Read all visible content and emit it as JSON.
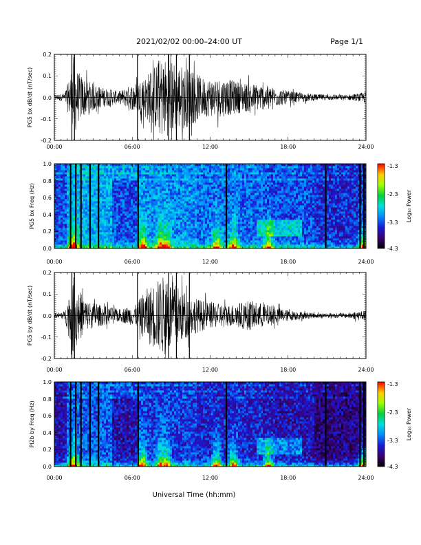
{
  "header": {
    "title": "2021/02/02  00:00–24:00 UT",
    "page": "Page 1/1"
  },
  "colors": {
    "trace": "#000000",
    "axis": "#000000",
    "background": "#ffffff"
  },
  "chart_data": [
    {
      "type": "line",
      "ylabel": "PG5 bx dB/dt (nT/sec)",
      "xticks": [
        "00:00",
        "06:00",
        "12:00",
        "18:00",
        "24:00"
      ],
      "ylim": [
        -0.2,
        0.2
      ],
      "yticks": [
        "0.2",
        "0.1",
        "0.0",
        "-0.1",
        "-0.2"
      ],
      "envelope": [
        {
          "hour": 0,
          "amp": 0.012
        },
        {
          "hour": 0.8,
          "amp": 0.02
        },
        {
          "hour": 1.2,
          "amp": 0.1
        },
        {
          "hour": 1.5,
          "amp": 0.2
        },
        {
          "hour": 1.8,
          "amp": 0.12
        },
        {
          "hour": 2.5,
          "amp": 0.08
        },
        {
          "hour": 3.5,
          "amp": 0.05
        },
        {
          "hour": 5.0,
          "amp": 0.03
        },
        {
          "hour": 6.3,
          "amp": 0.07
        },
        {
          "hour": 7.0,
          "amp": 0.1
        },
        {
          "hour": 8.3,
          "amp": 0.19
        },
        {
          "hour": 9.5,
          "amp": 0.16
        },
        {
          "hour": 10.5,
          "amp": 0.13
        },
        {
          "hour": 11.5,
          "amp": 0.09
        },
        {
          "hour": 13.0,
          "amp": 0.09
        },
        {
          "hour": 14.5,
          "amp": 0.07
        },
        {
          "hour": 16.0,
          "amp": 0.06
        },
        {
          "hour": 18.0,
          "amp": 0.03
        },
        {
          "hour": 20.0,
          "amp": 0.015
        },
        {
          "hour": 22.5,
          "amp": 0.012
        },
        {
          "hour": 23.6,
          "amp": 0.02
        },
        {
          "hour": 24,
          "amp": 0.03
        }
      ]
    },
    {
      "type": "heatmap",
      "ylabel": "PG5 bx Freq (Hz)",
      "xticks": [
        "00:00",
        "06:00",
        "12:00",
        "18:00",
        "24:00"
      ],
      "ylim": [
        0,
        1.0
      ],
      "yticks": [
        "1.0",
        "0.8",
        "0.6",
        "0.4",
        "0.2",
        "0.0"
      ],
      "colorbar": {
        "label": "Log₁₀ Power",
        "ticks": [
          "-1.3",
          "-2.3",
          "-3.3",
          "-4.3"
        ],
        "range": [
          -4.3,
          -1.3
        ]
      },
      "data_gaps_hours": [
        1.25,
        1.65,
        2.05,
        2.75,
        3.4,
        6.45,
        13.25,
        20.9,
        23.55,
        23.85
      ],
      "activity_hours": [
        1.5,
        6.8,
        8.2,
        8.6,
        12.5,
        13.8,
        16.5,
        23.8
      ]
    },
    {
      "type": "line",
      "ylabel": "PG5 by dB/dt (nT/sec)",
      "xticks": [
        "00:00",
        "06:00",
        "12:00",
        "18:00",
        "24:00"
      ],
      "ylim": [
        -0.2,
        0.2
      ],
      "yticks": [
        "0.2",
        "0.1",
        "0.0",
        "-0.1",
        "-0.2"
      ],
      "envelope": [
        {
          "hour": 0,
          "amp": 0.01
        },
        {
          "hour": 0.8,
          "amp": 0.02
        },
        {
          "hour": 1.2,
          "amp": 0.12
        },
        {
          "hour": 1.5,
          "amp": 0.2
        },
        {
          "hour": 1.9,
          "amp": 0.12
        },
        {
          "hour": 2.5,
          "amp": 0.07
        },
        {
          "hour": 3.5,
          "amp": 0.05
        },
        {
          "hour": 5.0,
          "amp": 0.03
        },
        {
          "hour": 6.3,
          "amp": 0.05
        },
        {
          "hour": 7.0,
          "amp": 0.12
        },
        {
          "hour": 8.5,
          "amp": 0.19
        },
        {
          "hour": 9.5,
          "amp": 0.14
        },
        {
          "hour": 10.5,
          "amp": 0.09
        },
        {
          "hour": 12.0,
          "amp": 0.06
        },
        {
          "hour": 13.5,
          "amp": 0.05
        },
        {
          "hour": 15.0,
          "amp": 0.07
        },
        {
          "hour": 16.5,
          "amp": 0.05
        },
        {
          "hour": 18.0,
          "amp": 0.025
        },
        {
          "hour": 20.0,
          "amp": 0.012
        },
        {
          "hour": 22.5,
          "amp": 0.01
        },
        {
          "hour": 23.6,
          "amp": 0.025
        },
        {
          "hour": 24,
          "amp": 0.02
        }
      ]
    },
    {
      "type": "heatmap",
      "ylabel": "PI2b by Freq (Hz)",
      "xticks": [
        "00:00",
        "06:00",
        "12:00",
        "18:00",
        "24:00"
      ],
      "ylim": [
        0,
        1.0
      ],
      "yticks": [
        "1.0",
        "0.8",
        "0.6",
        "0.4",
        "0.2",
        "0.0"
      ],
      "colorbar": {
        "label": "Log₁₀ Power",
        "ticks": [
          "-1.3",
          "-2.3",
          "-3.3",
          "-4.3"
        ],
        "range": [
          -4.3,
          -1.3
        ]
      },
      "data_gaps_hours": [
        1.25,
        1.65,
        2.05,
        2.75,
        3.4,
        6.45,
        13.25,
        20.9,
        23.55,
        23.85
      ],
      "activity_hours": [
        1.5,
        6.8,
        8.2,
        8.6,
        12.5,
        13.8,
        16.5,
        23.8
      ]
    }
  ],
  "xlabel": "Universal Time (hh:mm)"
}
